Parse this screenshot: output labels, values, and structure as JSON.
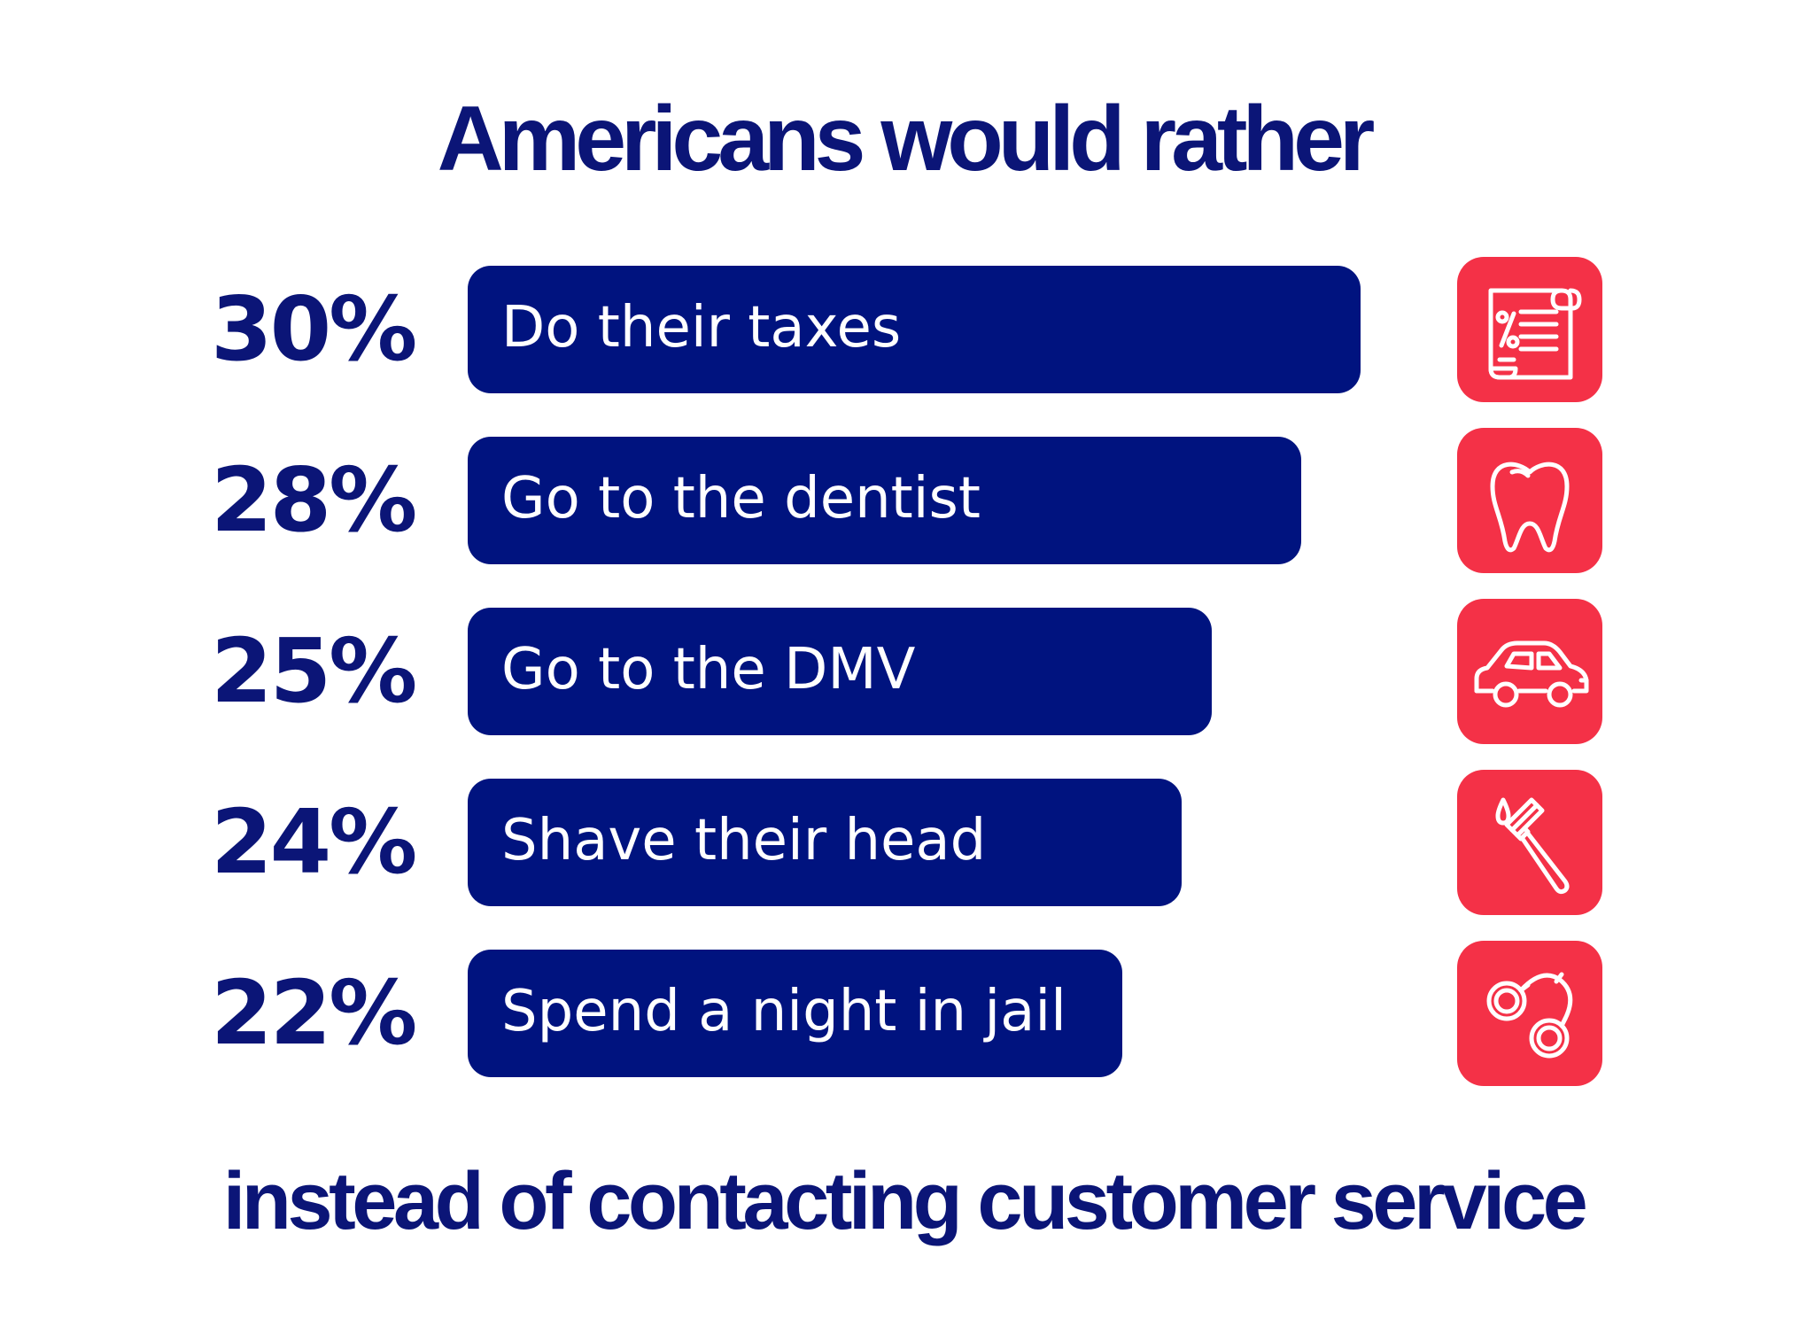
{
  "chart_data": {
    "type": "bar",
    "orientation": "horizontal",
    "title": "Americans would rather",
    "subtitle": "instead of contacting customer service",
    "categories": [
      "Do their taxes",
      "Go to the dentist",
      "Go to the DMV",
      "Shave their head",
      "Spend a night in jail"
    ],
    "values": [
      30,
      28,
      25,
      24,
      22
    ],
    "value_labels": [
      "30%",
      "28%",
      "25%",
      "24%",
      "22%"
    ],
    "icons": [
      "tax-document-icon",
      "tooth-icon",
      "car-icon",
      "razor-icon",
      "handcuffs-icon"
    ],
    "unit": "%"
  },
  "colors": {
    "bar": "#00137f",
    "text": "#0b1577",
    "icon_tile": "#f43147",
    "icon_stroke": "#ffffff",
    "background": "#ffffff"
  }
}
